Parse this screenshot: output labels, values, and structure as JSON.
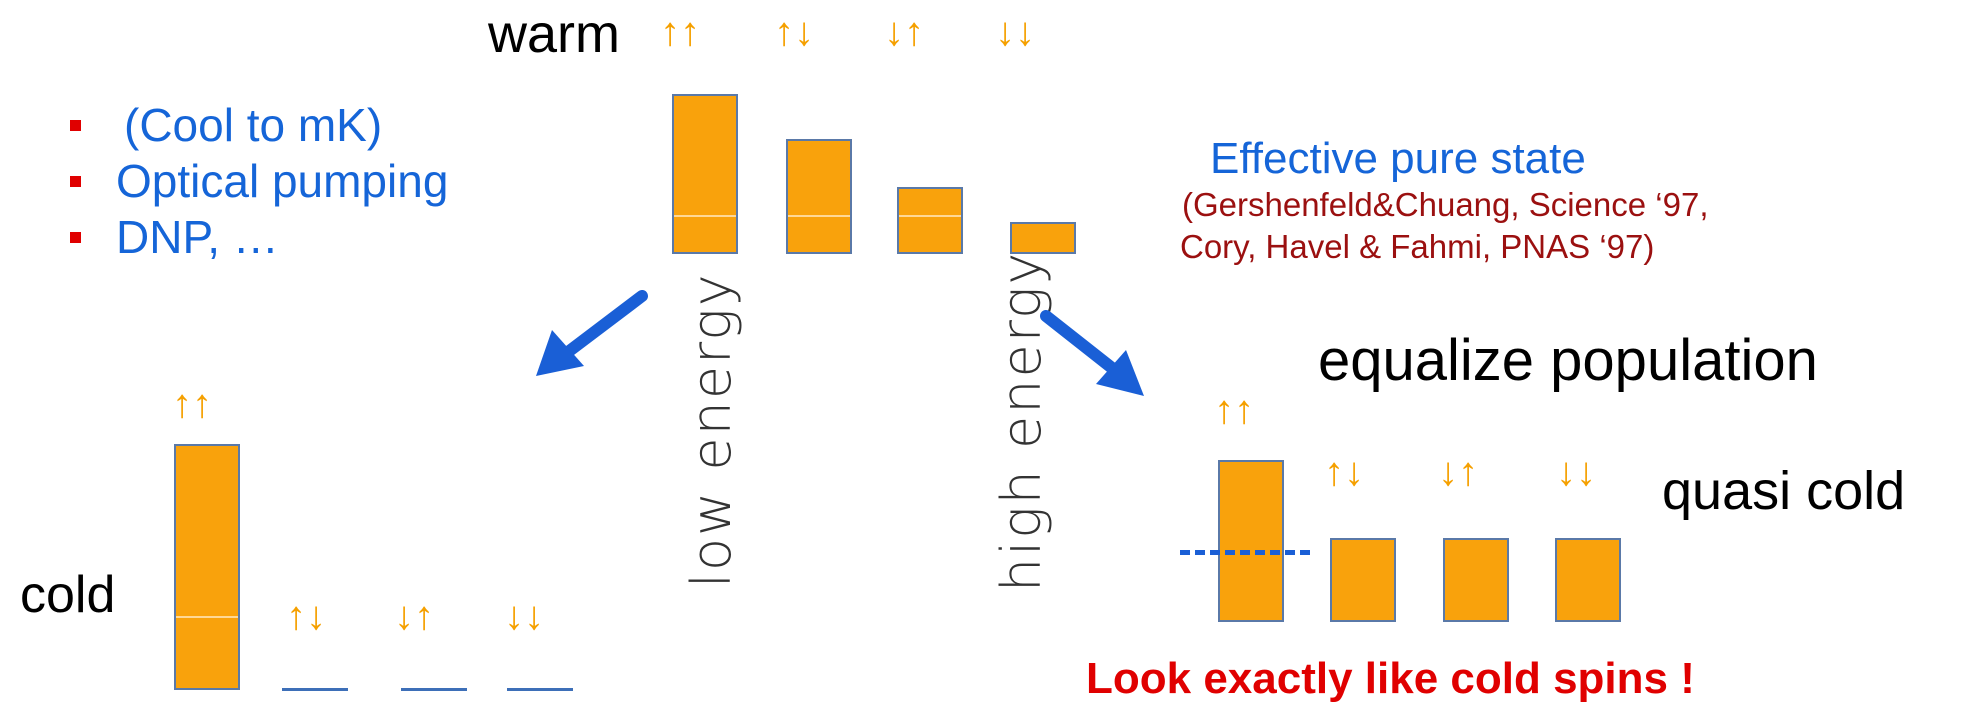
{
  "warm": {
    "title": "warm",
    "spins": [
      "↑↑",
      "↑↓",
      "↓↑",
      "↓↓"
    ],
    "populations": [
      1.0,
      0.72,
      0.42,
      0.2
    ]
  },
  "bullets": [
    "(Cool to mK)",
    "Optical pumping",
    "DNP, …"
  ],
  "axis_labels": {
    "low": "low energy",
    "high": "high energy"
  },
  "cold": {
    "label": "cold",
    "spins": [
      "↑↑",
      "↑↓",
      "↓↑",
      "↓↓"
    ],
    "populations": [
      1.0,
      0,
      0,
      0
    ]
  },
  "effective": {
    "title": "Effective pure state",
    "refs": [
      "(Gershenfeld&Chuang, Science ‘97,",
      "Cory, Havel & Fahmi, PNAS ‘97)"
    ]
  },
  "quasi": {
    "heading": "equalize population",
    "label": "quasi cold",
    "spins": [
      "↑↑",
      "↑↓",
      "↓↑",
      "↓↓"
    ],
    "populations": [
      1.0,
      0.52,
      0.52,
      0.52
    ]
  },
  "conclusion": "Look exactly like cold spins !",
  "colors": {
    "bar": "#f9a20c",
    "spin": "#f5a000",
    "blue_text": "#1565d8",
    "ref_text": "#9b1010",
    "alert": "#e00000",
    "arrow": "#1a5fd6"
  }
}
